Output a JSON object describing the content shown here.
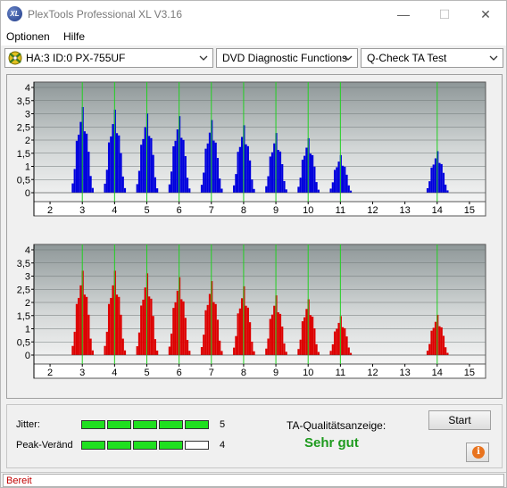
{
  "window": {
    "title": "PlexTools Professional XL V3.16",
    "icon_text": "XL",
    "minimize": "—",
    "maximize": "☐",
    "close": "✕"
  },
  "menu": {
    "items": [
      "Optionen",
      "Hilfe"
    ]
  },
  "toolbar": {
    "drive": "HA:3 ID:0  PX-755UF",
    "function": "DVD Diagnostic Functions",
    "test": "Q-Check TA Test"
  },
  "chart_data": [
    {
      "type": "bar",
      "series": [
        {
          "color": "#0000dd"
        }
      ],
      "x_ticks": [
        "2",
        "3",
        "4",
        "5",
        "6",
        "7",
        "8",
        "9",
        "10",
        "11",
        "12",
        "13",
        "14",
        "15"
      ],
      "y_ticks": [
        "0",
        "0,5",
        "1",
        "1,5",
        "2",
        "2,5",
        "3",
        "3,5",
        "4"
      ],
      "xlim": [
        1.5,
        15.5
      ],
      "ylim": [
        0,
        4
      ],
      "peaks": [
        {
          "x": 3,
          "height": 3.3
        },
        {
          "x": 4,
          "height": 3.2
        },
        {
          "x": 5,
          "height": 3.05
        },
        {
          "x": 6,
          "height": 2.95
        },
        {
          "x": 7,
          "height": 2.8
        },
        {
          "x": 8,
          "height": 2.6
        },
        {
          "x": 9,
          "height": 2.3
        },
        {
          "x": 10,
          "height": 2.1
        },
        {
          "x": 11,
          "height": 1.45
        },
        {
          "x": 14,
          "height": 1.6
        }
      ],
      "reference_lines_x": [
        3,
        4,
        5,
        6,
        7,
        8,
        9,
        10,
        11,
        14
      ],
      "grid": true
    },
    {
      "type": "bar",
      "series": [
        {
          "color": "#dd0000"
        }
      ],
      "x_ticks": [
        "2",
        "3",
        "4",
        "5",
        "6",
        "7",
        "8",
        "9",
        "10",
        "11",
        "12",
        "13",
        "14",
        "15"
      ],
      "y_ticks": [
        "0",
        "0,5",
        "1",
        "1,5",
        "2",
        "2,5",
        "3",
        "3,5",
        "4"
      ],
      "xlim": [
        1.5,
        15.5
      ],
      "ylim": [
        0,
        4
      ],
      "peaks": [
        {
          "x": 3,
          "height": 3.25
        },
        {
          "x": 4,
          "height": 3.25
        },
        {
          "x": 5,
          "height": 3.15
        },
        {
          "x": 6,
          "height": 3.0
        },
        {
          "x": 7,
          "height": 2.85
        },
        {
          "x": 8,
          "height": 2.65
        },
        {
          "x": 9,
          "height": 2.3
        },
        {
          "x": 10,
          "height": 2.15
        },
        {
          "x": 11,
          "height": 1.5
        },
        {
          "x": 14,
          "height": 1.55
        }
      ],
      "reference_lines_x": [
        3,
        4,
        5,
        6,
        7,
        8,
        9,
        10,
        11,
        14
      ],
      "grid": true
    }
  ],
  "status": {
    "jitter_label": "Jitter:",
    "jitter_value": "5",
    "jitter_level": 5,
    "peak_label": "Peak-Veränd:",
    "peak_value": "4",
    "peak_level": 4,
    "meter_max": 5,
    "meter_color": "#1fe01f",
    "ta_label": "TA-Qualitätsanzeige:",
    "ta_value": "Sehr gut",
    "start_label": "Start",
    "info_icon": "i"
  },
  "statusbar": {
    "text": "Bereit"
  }
}
